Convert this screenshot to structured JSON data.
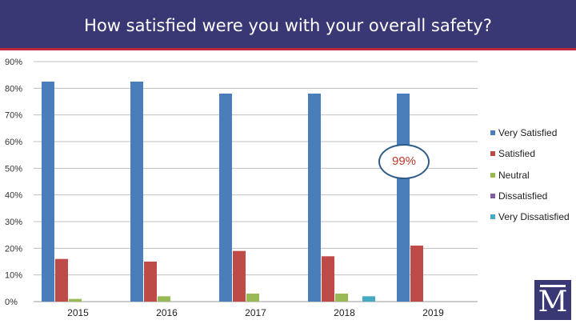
{
  "header": {
    "title": "How satisfied were you with your overall safety?"
  },
  "colors": {
    "header_bg": "#3a3775",
    "header_rule": "#c0263b"
  },
  "chart_data": {
    "type": "bar",
    "title": "How satisfied were you with your overall safety?",
    "categories": [
      "2015",
      "2016",
      "2017",
      "2018",
      "2019"
    ],
    "series": [
      {
        "name": "Very Satisfied",
        "color": "#4a7ebb",
        "values": [
          82.5,
          82.5,
          78,
          78,
          78
        ]
      },
      {
        "name": "Satisfied",
        "color": "#be4b48",
        "values": [
          16,
          15,
          19,
          17,
          21
        ]
      },
      {
        "name": "Neutral",
        "color": "#98b954",
        "values": [
          1,
          2,
          3,
          3,
          0
        ]
      },
      {
        "name": "Dissatisfied",
        "color": "#7d60a0",
        "values": [
          0,
          0,
          0,
          0,
          0
        ]
      },
      {
        "name": "Very Dissatisfied",
        "color": "#46aac5",
        "values": [
          0,
          0,
          0,
          2,
          0
        ]
      }
    ],
    "yticks": [
      "0%",
      "10%",
      "20%",
      "30%",
      "40%",
      "50%",
      "60%",
      "70%",
      "80%",
      "90%"
    ],
    "ylim": [
      0,
      90
    ],
    "xlabel": "",
    "ylabel": "",
    "legend_position": "right",
    "grid": true,
    "annotation": "99%"
  },
  "logo": {
    "letter": "M"
  }
}
